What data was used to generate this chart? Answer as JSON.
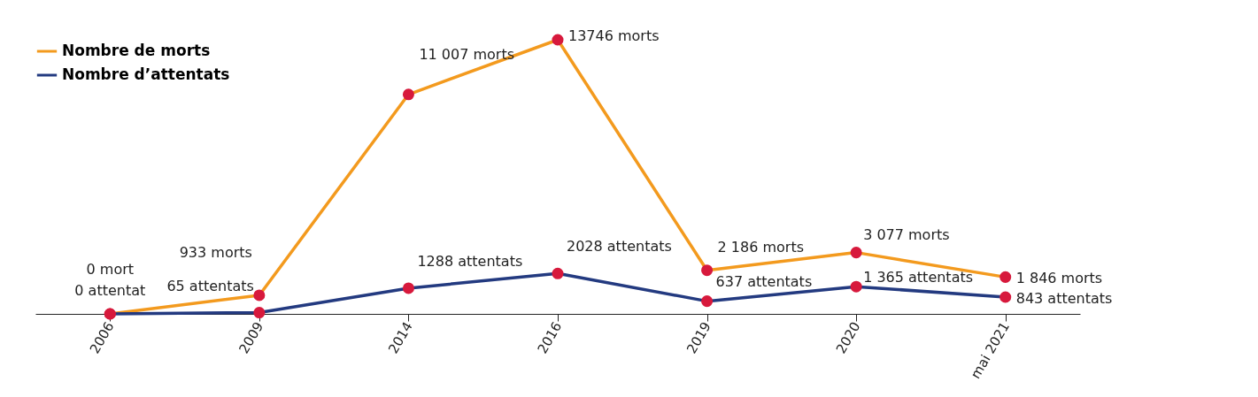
{
  "chart_data": {
    "type": "line",
    "categories": [
      "2006",
      "2009",
      "2014",
      "2016",
      "2019",
      "2020",
      "mai 2021"
    ],
    "series": [
      {
        "name": "Nombre de morts",
        "color": "#f39a1e",
        "values": [
          0,
          933,
          11007,
          13746,
          2186,
          3077,
          1846
        ],
        "value_labels": [
          "0 mort",
          "933 morts",
          "11 007 morts",
          "13746 morts",
          "2 186 morts",
          "3 077 morts",
          "1 846 morts"
        ]
      },
      {
        "name": "Nombre d’attentats",
        "color": "#233a80",
        "values": [
          0,
          65,
          1288,
          2028,
          637,
          1365,
          843
        ],
        "value_labels": [
          "0 attentat",
          "65 attentats",
          "1288 attentats",
          "2028 attentats",
          "637 attentats",
          "1 365 attentats",
          "843 attentats"
        ]
      }
    ],
    "legend": "top left",
    "marker": "circle",
    "line_style": "solid",
    "tick_labels": "x",
    "grid": false
  }
}
